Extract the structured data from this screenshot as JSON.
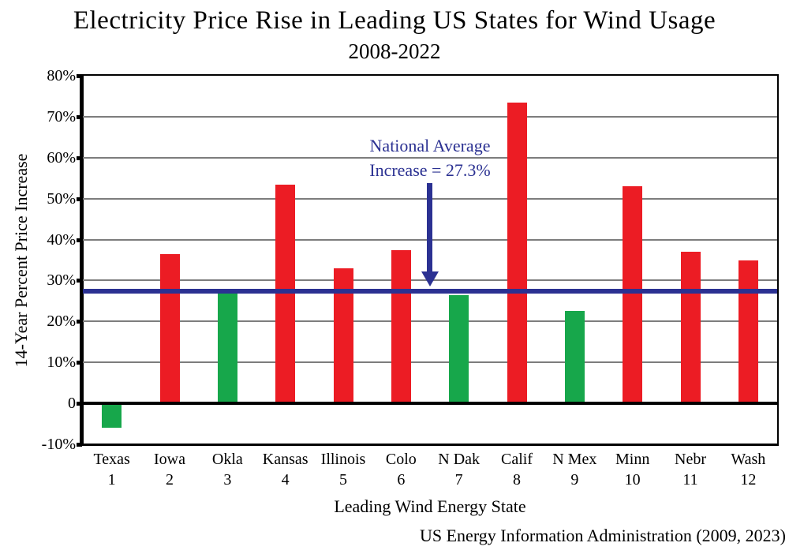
{
  "header": {
    "title": "Electricity Price Rise in Leading US States for Wind Usage",
    "subtitle": "2008-2022"
  },
  "chart_data": {
    "type": "bar",
    "title": "Electricity Price Rise in Leading US States for Wind Usage",
    "subtitle": "2008-2022",
    "xlabel": "Leading Wind Energy State",
    "ylabel": "14-Year Percent Price Increase",
    "ylim": [
      -10,
      80
    ],
    "grid": true,
    "yticks": [
      80,
      70,
      60,
      50,
      40,
      30,
      20,
      10,
      0,
      -10
    ],
    "ytick_labels": [
      "80%",
      "70%",
      "60%",
      "50%",
      "40%",
      "30%",
      "20%",
      "10%",
      "0",
      "-10%"
    ],
    "categories": [
      "Texas",
      "Iowa",
      "Okla",
      "Kansas",
      "Illinois",
      "Colo",
      "N Dak",
      "Calif",
      "N Mex",
      "Minn",
      "Nebr",
      "Wash"
    ],
    "ranks": [
      "1",
      "2",
      "3",
      "4",
      "5",
      "6",
      "7",
      "8",
      "9",
      "10",
      "11",
      "12"
    ],
    "values": [
      -6,
      36.5,
      27,
      53.5,
      33,
      37.5,
      26.5,
      73.5,
      22.5,
      53,
      37,
      35
    ],
    "bar_colors": [
      "green",
      "red",
      "green",
      "red",
      "red",
      "red",
      "green",
      "red",
      "green",
      "red",
      "red",
      "red"
    ],
    "colors": {
      "red": "#EC1C24",
      "green": "#17A74B",
      "navy": "#2B3192",
      "grid": "#7d7d7d"
    },
    "reference_line": {
      "value": 27.3,
      "color": "#2B3192",
      "label_line1": "National Average",
      "label_line2": "Increase = 27.3%"
    }
  },
  "footer": {
    "source": "US Energy Information Administration (2009, 2023)"
  }
}
